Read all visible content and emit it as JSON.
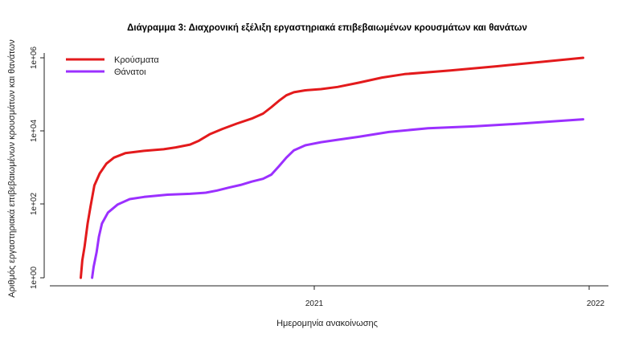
{
  "chart_data": {
    "type": "line",
    "title": "Διάγραμμα 3: Διαχρονική εξέλιξη εργαστηριακά επιβεβαιωμένων κρουσμάτων και θανάτων",
    "xlabel": "Ημερομηνία ανακοίνωσης",
    "ylabel": "Αριθμός εργαστηριακά επιβεβαιωμένων κρουσμάτων και θανάτων",
    "y_scale": "log10",
    "ylim": [
      1,
      1000000
    ],
    "xlim": [
      "2020-02-01",
      "2022-01-01"
    ],
    "x_ticks": [
      {
        "date": "2021-01-01",
        "label": "2021"
      },
      {
        "date": "2022-01-01",
        "label": "2022"
      }
    ],
    "y_ticks": [
      {
        "value": 1,
        "label": "1e+00"
      },
      {
        "value": 100,
        "label": "1e+02"
      },
      {
        "value": 10000,
        "label": "1e+04"
      },
      {
        "value": 1000000,
        "label": "1e+06"
      }
    ],
    "legend_position": "top-left",
    "grid": false,
    "series": [
      {
        "name": "Κρούσματα",
        "color": "#e31a1c",
        "points": [
          [
            "2020-02-26",
            1
          ],
          [
            "2020-02-28",
            3
          ],
          [
            "2020-03-02",
            7
          ],
          [
            "2020-03-06",
            30
          ],
          [
            "2020-03-10",
            90
          ],
          [
            "2020-03-15",
            330
          ],
          [
            "2020-03-22",
            700
          ],
          [
            "2020-03-31",
            1300
          ],
          [
            "2020-04-10",
            1900
          ],
          [
            "2020-04-25",
            2500
          ],
          [
            "2020-05-20",
            2900
          ],
          [
            "2020-06-15",
            3200
          ],
          [
            "2020-07-01",
            3600
          ],
          [
            "2020-07-20",
            4300
          ],
          [
            "2020-08-01",
            5500
          ],
          [
            "2020-08-15",
            8200
          ],
          [
            "2020-09-01",
            11500
          ],
          [
            "2020-09-20",
            16000
          ],
          [
            "2020-10-10",
            22000
          ],
          [
            "2020-10-25",
            30000
          ],
          [
            "2020-11-05",
            45000
          ],
          [
            "2020-11-15",
            67000
          ],
          [
            "2020-11-25",
            95000
          ],
          [
            "2020-12-05",
            115000
          ],
          [
            "2020-12-20",
            130000
          ],
          [
            "2021-01-10",
            140000
          ],
          [
            "2021-02-01",
            160000
          ],
          [
            "2021-03-01",
            210000
          ],
          [
            "2021-04-01",
            290000
          ],
          [
            "2021-05-01",
            360000
          ],
          [
            "2021-07-01",
            450000
          ],
          [
            "2021-09-01",
            590000
          ],
          [
            "2021-11-01",
            780000
          ],
          [
            "2021-12-24",
            1000000
          ]
        ]
      },
      {
        "name": "Θάνατοι",
        "color": "#9b30ff",
        "points": [
          [
            "2020-03-12",
            1
          ],
          [
            "2020-03-14",
            2
          ],
          [
            "2020-03-18",
            5
          ],
          [
            "2020-03-21",
            13
          ],
          [
            "2020-03-25",
            30
          ],
          [
            "2020-04-02",
            60
          ],
          [
            "2020-04-15",
            100
          ],
          [
            "2020-05-01",
            140
          ],
          [
            "2020-05-20",
            160
          ],
          [
            "2020-06-20",
            185
          ],
          [
            "2020-07-20",
            195
          ],
          [
            "2020-08-10",
            210
          ],
          [
            "2020-08-25",
            240
          ],
          [
            "2020-09-10",
            290
          ],
          [
            "2020-09-25",
            340
          ],
          [
            "2020-10-10",
            420
          ],
          [
            "2020-10-25",
            500
          ],
          [
            "2020-11-05",
            650
          ],
          [
            "2020-11-15",
            1100
          ],
          [
            "2020-11-25",
            1900
          ],
          [
            "2020-12-05",
            3000
          ],
          [
            "2020-12-20",
            4100
          ],
          [
            "2021-01-10",
            5000
          ],
          [
            "2021-02-01",
            5800
          ],
          [
            "2021-03-01",
            7000
          ],
          [
            "2021-04-10",
            9500
          ],
          [
            "2021-06-01",
            12000
          ],
          [
            "2021-08-01",
            13500
          ],
          [
            "2021-10-01",
            16000
          ],
          [
            "2021-12-24",
            21000
          ]
        ]
      }
    ]
  }
}
